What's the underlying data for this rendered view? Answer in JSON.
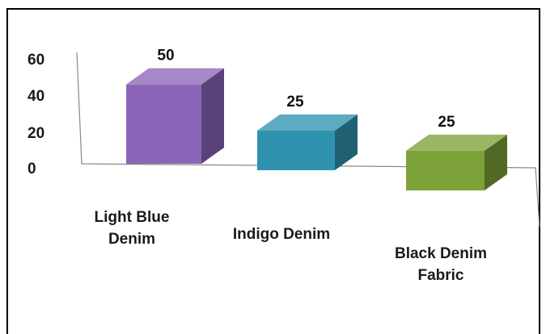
{
  "chart_data": {
    "type": "bar",
    "style": "3d-column",
    "categories": [
      "Light Blue Denim",
      "Indigo Denim",
      "Black Denim Fabric"
    ],
    "category_lines": [
      [
        "Light Blue",
        "Denim"
      ],
      [
        "Indigo Denim"
      ],
      [
        "Black Denim",
        "Fabric"
      ]
    ],
    "values": [
      50,
      25,
      25
    ],
    "data_labels": [
      "50",
      "25",
      "25"
    ],
    "colors": [
      "#8b66b8",
      "#2f93b0",
      "#7ea23a"
    ],
    "yticks": [
      "0",
      "20",
      "40",
      "60"
    ],
    "ylim": [
      0,
      60
    ],
    "grid": false,
    "legend": "none"
  }
}
